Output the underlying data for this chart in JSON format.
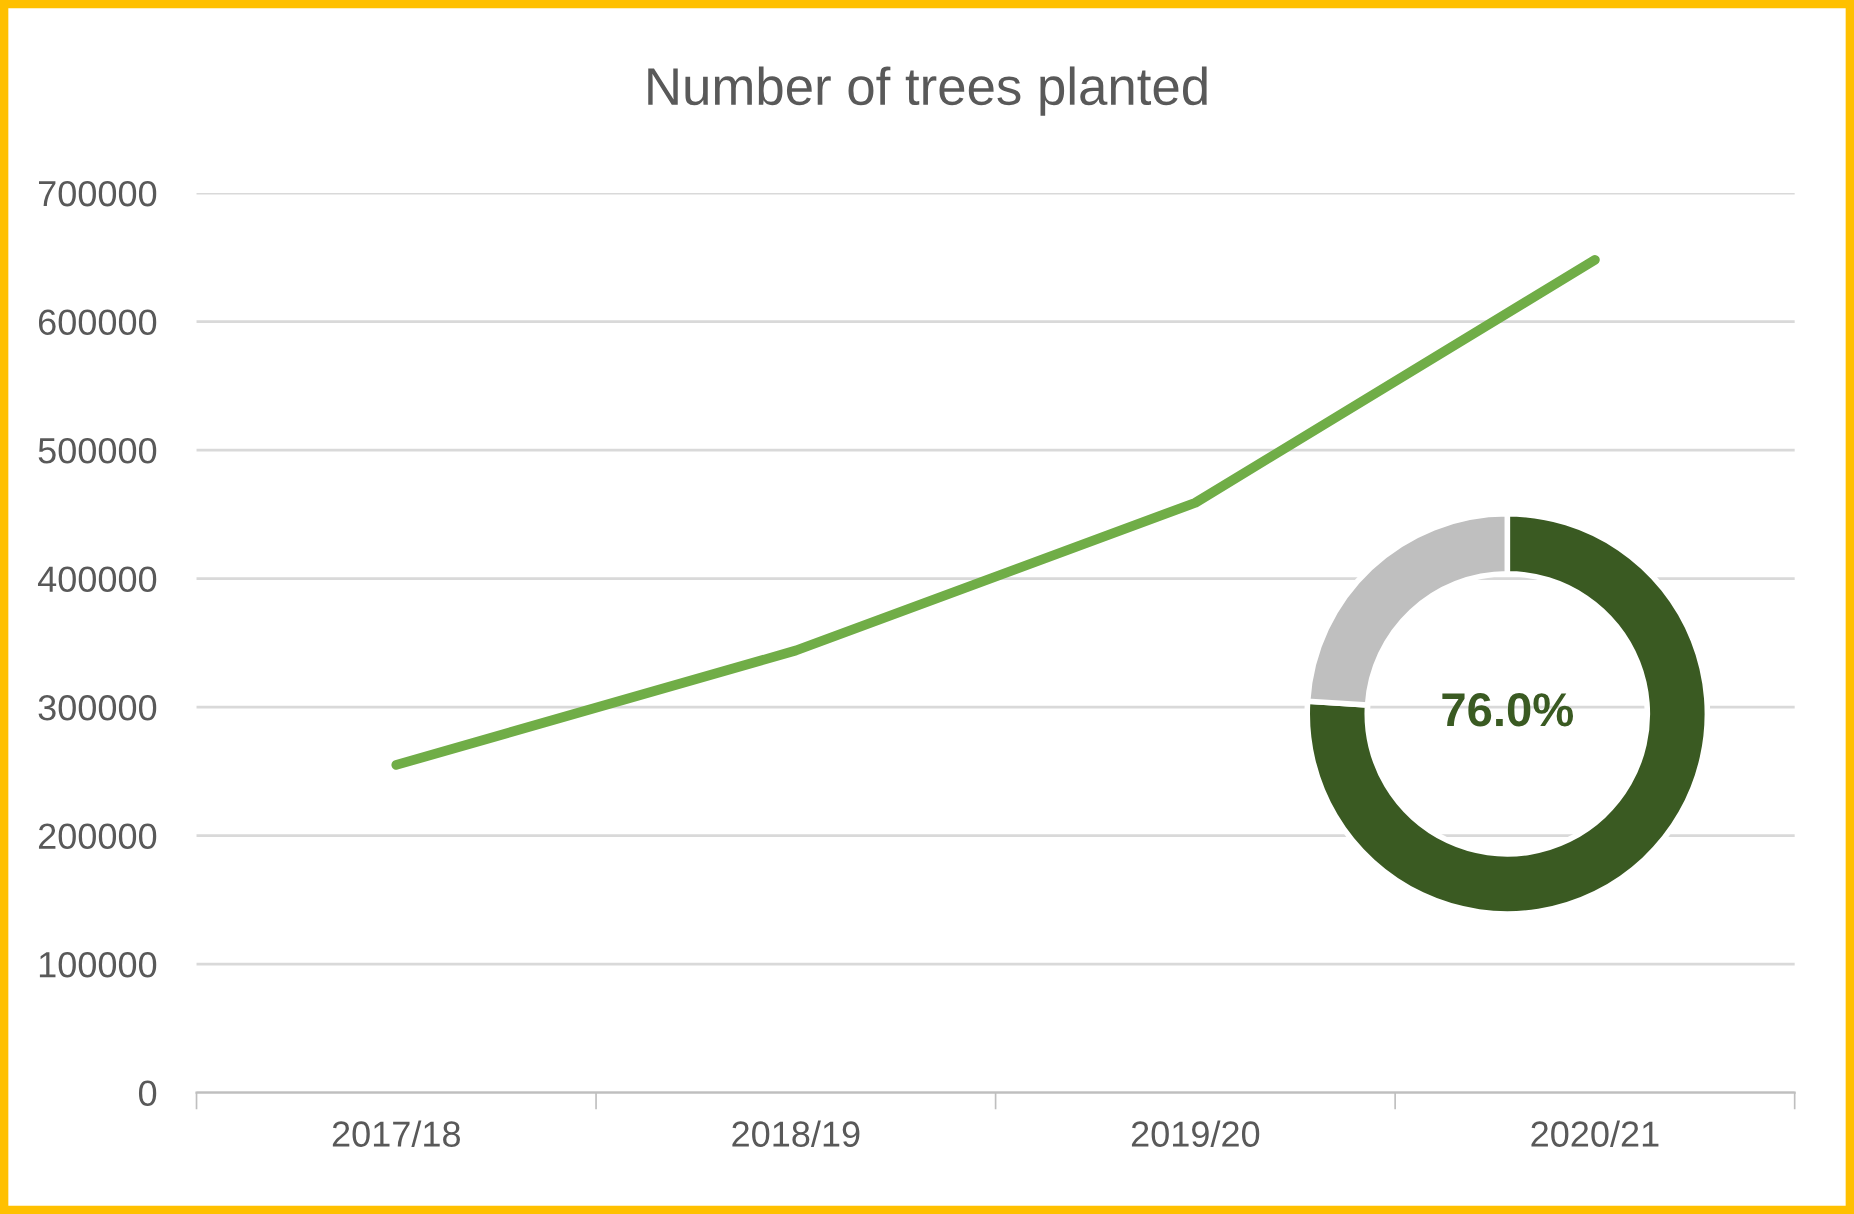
{
  "chart_data": [
    {
      "type": "line",
      "title": "Number of trees planted",
      "categories": [
        "2017/18",
        "2018/19",
        "2019/20",
        "2020/21"
      ],
      "series": [
        {
          "color": "#70ad47",
          "values": [
            255000,
            344000,
            459000,
            648000
          ]
        }
      ],
      "ylim": [
        0,
        700000
      ],
      "yticks": [
        0,
        100000,
        200000,
        300000,
        400000,
        500000,
        600000,
        700000
      ],
      "grid": "y",
      "marker": "none",
      "line_style": "solid"
    },
    {
      "type": "donut",
      "categories": [
        null,
        null
      ],
      "values": [
        76,
        24
      ],
      "colors": [
        "#3a5a22",
        "#bfbfbf"
      ],
      "value_labels": [
        "76.0%",
        null
      ]
    }
  ]
}
